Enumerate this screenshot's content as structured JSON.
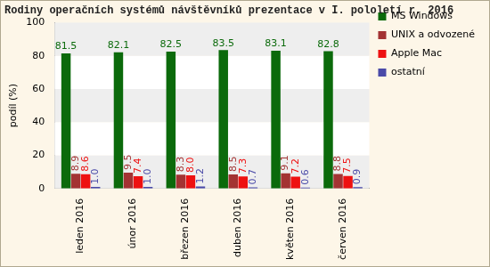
{
  "chart_data": {
    "type": "bar",
    "title": "Rodiny operačních systémů návštěvníků prezentace v I. pololetí r. 2016",
    "y_label": "podíl (%)",
    "categories": [
      "leden 2016",
      "únor 2016",
      "březen 2016",
      "duben 2016",
      "květen 2016",
      "červen 2016"
    ],
    "series": [
      {
        "name": "MS Windows",
        "color": "#0b6a0b",
        "values": [
          81.5,
          82.1,
          82.5,
          83.5,
          83.1,
          82.8
        ]
      },
      {
        "name": "UNIX a odvozené",
        "color": "#a33333",
        "values": [
          8.9,
          9.5,
          8.3,
          8.5,
          9.1,
          8.8
        ]
      },
      {
        "name": "Apple Mac",
        "color": "#ee1111",
        "values": [
          8.6,
          7.4,
          8.0,
          7.3,
          7.2,
          7.5
        ],
        "value_labels": [
          "8.6",
          "7.4",
          "8.0",
          "7.3",
          "7.2",
          "7.5"
        ]
      },
      {
        "name": "ostatní",
        "color": "#4a4aa8",
        "values": [
          1.0,
          1.0,
          1.2,
          0.7,
          0.6,
          0.9
        ],
        "value_labels": [
          "1.0",
          "1.0",
          "1.2",
          "0.7",
          "0.6",
          "0.9"
        ]
      }
    ],
    "ylim": [
      0,
      100
    ],
    "yticks": [
      0,
      20,
      40,
      60,
      80,
      100
    ],
    "grid": true,
    "legend": "right",
    "data_labels": true
  }
}
